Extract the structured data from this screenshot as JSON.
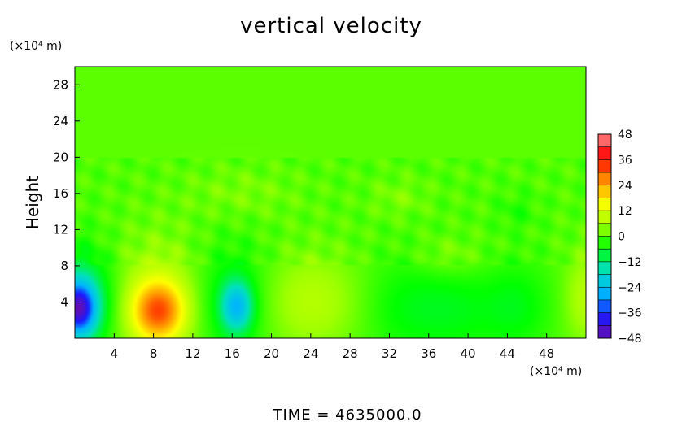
{
  "chart_data": {
    "type": "heatmap",
    "title": "vertical velocity",
    "xlabel": "",
    "x_unit_label": "(×10⁴ m)",
    "ylabel": "Height",
    "y_unit_label": "(×10⁴ m)",
    "footer": "TIME  =  4635000.0",
    "xlim": [
      0,
      52
    ],
    "ylim": [
      0,
      30
    ],
    "x_ticks": [
      4,
      8,
      12,
      16,
      20,
      24,
      28,
      32,
      36,
      40,
      44,
      48
    ],
    "y_ticks": [
      4,
      8,
      12,
      16,
      20,
      24,
      28
    ],
    "colorbar": {
      "range": [
        -48,
        48
      ],
      "ticks": [
        48,
        36,
        24,
        12,
        0,
        -12,
        -24,
        -36,
        -48
      ],
      "colors": [
        "#6a0dad",
        "#1a1aff",
        "#00b4ff",
        "#00e0c0",
        "#00ff00",
        "#a0ff00",
        "#ffff00",
        "#ff8800",
        "#ff0000",
        "#ff9090"
      ]
    },
    "background_value": 0,
    "features": [
      {
        "x": 0.4,
        "y": 3.3,
        "sx": 1.2,
        "sy": 2.0,
        "value": -34
      },
      {
        "x": 0.8,
        "y": 4.0,
        "sx": 2.5,
        "sy": 4.0,
        "value": -14
      },
      {
        "x": 8.5,
        "y": 3.0,
        "sx": 1.9,
        "sy": 2.3,
        "value": 24
      },
      {
        "x": 8.5,
        "y": 4.0,
        "sx": 3.5,
        "sy": 5.0,
        "value": 9
      },
      {
        "x": 16.5,
        "y": 3.5,
        "sx": 1.1,
        "sy": 1.9,
        "value": -20
      },
      {
        "x": 16.0,
        "y": 4.0,
        "sx": 3.0,
        "sy": 4.5,
        "value": -9
      },
      {
        "x": 24.0,
        "y": 4.0,
        "sx": 4.5,
        "sy": 3.8,
        "value": 8
      },
      {
        "x": 33.0,
        "y": 3.5,
        "sx": 3.5,
        "sy": 4.0,
        "value": -6
      },
      {
        "x": 39.0,
        "y": 3.0,
        "sx": 3.0,
        "sy": 3.5,
        "value": -5
      },
      {
        "x": 45.0,
        "y": 3.5,
        "sx": 2.5,
        "sy": 3.5,
        "value": -6
      },
      {
        "x": 52.0,
        "y": 4.5,
        "sx": 1.5,
        "sy": 3.5,
        "value": 8
      },
      {
        "x": 38.0,
        "y": 9.0,
        "sx": 2.5,
        "sy": 1.5,
        "value": 4
      },
      {
        "x": 17.0,
        "y": 16.0,
        "sx": 4.0,
        "sy": 2.0,
        "value": 3
      },
      {
        "x": 33.0,
        "y": 15.5,
        "sx": 2.0,
        "sy": 1.5,
        "value": 3
      },
      {
        "x": 45.0,
        "y": 14.0,
        "sx": 1.5,
        "sy": 1.5,
        "value": -3
      }
    ]
  }
}
